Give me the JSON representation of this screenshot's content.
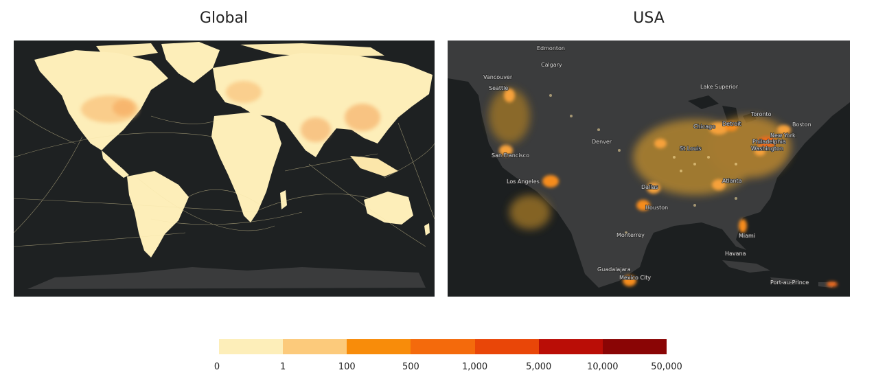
{
  "titles": {
    "global": "Global",
    "usa": "USA"
  },
  "legend": {
    "colors": [
      "#fdeeb9",
      "#fcca7b",
      "#f88c0a",
      "#f46a0c",
      "#e94608",
      "#ba0d06",
      "#8a0505"
    ],
    "ticks": [
      "0",
      "1",
      "100",
      "500",
      "1,000",
      "5,000",
      "10,000",
      "50,000"
    ]
  },
  "usa_cities": {
    "edmonton": "Edmonton",
    "calgary": "Calgary",
    "vancouver": "Vancouver",
    "seattle": "Seattle",
    "lake_superior": "Lake Superior",
    "chicago": "Chicago",
    "detroit": "Detroit",
    "toronto": "Toronto",
    "boston": "Boston",
    "new_york": "New York",
    "philadelphia": "Philadelphia",
    "washington": "Washington",
    "denver": "Denver",
    "st_louis": "St Louis",
    "san_francisco": "San Francisco",
    "los_angeles": "Los Angeles",
    "dallas": "Dallas",
    "atlanta": "Atlanta",
    "houston": "Houston",
    "monterrey": "Monterrey",
    "miami": "Miami",
    "havana": "Havana",
    "guadalajara": "Guadalajara",
    "mexico_city": "Mexico City",
    "port_au_prince": "Port-au-Prince"
  }
}
